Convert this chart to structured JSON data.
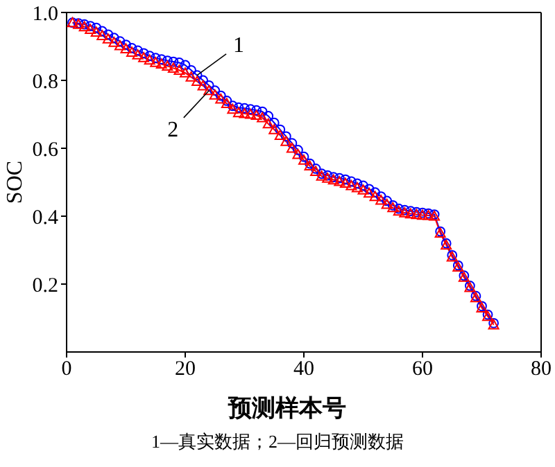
{
  "chart_data": {
    "type": "line",
    "xlabel": "预测样本号",
    "ylabel": "SOC",
    "xlim": [
      0,
      80
    ],
    "xticks": [
      0,
      20,
      40,
      60,
      80
    ],
    "ylim": [
      0,
      1
    ],
    "yticks": [
      0.2,
      0.4,
      0.6,
      {
        "value": 1,
        "label": "1.0"
      },
      0.8
    ],
    "line_style": "solid",
    "x": [
      1,
      2,
      3,
      4,
      5,
      6,
      7,
      8,
      9,
      10,
      11,
      12,
      13,
      14,
      15,
      16,
      17,
      18,
      19,
      20,
      21,
      22,
      23,
      24,
      25,
      26,
      27,
      28,
      29,
      30,
      31,
      32,
      33,
      34,
      35,
      36,
      37,
      38,
      39,
      40,
      41,
      42,
      43,
      44,
      45,
      46,
      47,
      48,
      49,
      50,
      51,
      52,
      53,
      54,
      55,
      56,
      57,
      58,
      59,
      60,
      61,
      62,
      63,
      64,
      65,
      66,
      67,
      68,
      69,
      70,
      71,
      72
    ],
    "series": [
      {
        "color": "#0000ff",
        "marker": "circle",
        "values": [
          0.97,
          0.968,
          0.965,
          0.96,
          0.955,
          0.945,
          0.935,
          0.925,
          0.915,
          0.905,
          0.895,
          0.888,
          0.88,
          0.872,
          0.866,
          0.862,
          0.858,
          0.855,
          0.852,
          0.845,
          0.83,
          0.815,
          0.8,
          0.785,
          0.77,
          0.755,
          0.74,
          0.725,
          0.72,
          0.718,
          0.715,
          0.712,
          0.708,
          0.695,
          0.675,
          0.655,
          0.635,
          0.615,
          0.595,
          0.575,
          0.555,
          0.54,
          0.525,
          0.52,
          0.515,
          0.512,
          0.508,
          0.502,
          0.496,
          0.49,
          0.48,
          0.47,
          0.458,
          0.445,
          0.432,
          0.422,
          0.418,
          0.415,
          0.412,
          0.41,
          0.408,
          0.405,
          0.355,
          0.32,
          0.285,
          0.255,
          0.225,
          0.195,
          0.165,
          0.135,
          0.11,
          0.085
        ]
      },
      {
        "color": "#ff0000",
        "marker": "triangle",
        "values": [
          0.97,
          0.965,
          0.958,
          0.95,
          0.942,
          0.932,
          0.922,
          0.912,
          0.902,
          0.893,
          0.883,
          0.875,
          0.867,
          0.86,
          0.853,
          0.848,
          0.842,
          0.836,
          0.83,
          0.822,
          0.81,
          0.797,
          0.784,
          0.77,
          0.757,
          0.745,
          0.732,
          0.715,
          0.705,
          0.702,
          0.7,
          0.697,
          0.69,
          0.672,
          0.655,
          0.638,
          0.62,
          0.6,
          0.582,
          0.565,
          0.548,
          0.532,
          0.518,
          0.512,
          0.507,
          0.502,
          0.497,
          0.49,
          0.484,
          0.477,
          0.468,
          0.458,
          0.447,
          0.435,
          0.425,
          0.415,
          0.41,
          0.407,
          0.405,
          0.403,
          0.402,
          0.4,
          0.35,
          0.315,
          0.28,
          0.25,
          0.22,
          0.19,
          0.16,
          0.13,
          0.105,
          0.08
        ]
      }
    ],
    "annotations": [
      {
        "text": "1",
        "x": 22,
        "y": 0.815
      },
      {
        "text": "2",
        "x": 24,
        "y": 0.77
      },
      "1—真实数据；2—回归预测数据"
    ]
  }
}
